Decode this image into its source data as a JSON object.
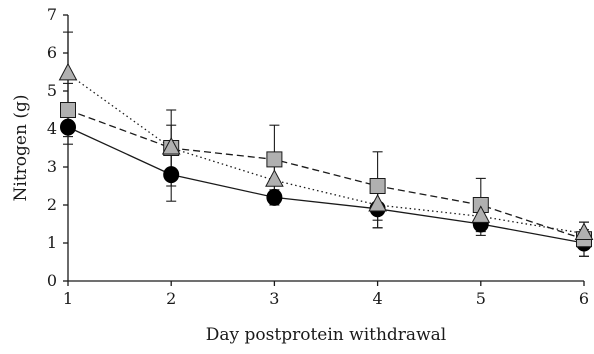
{
  "chart_data": {
    "type": "line",
    "title": "",
    "xlabel": "Day postprotein withdrawal",
    "ylabel": "Nitrogen (g)",
    "x": [
      1,
      2,
      3,
      4,
      5,
      6
    ],
    "xlim": [
      1,
      6
    ],
    "ylim": [
      0,
      7
    ],
    "xticks": [
      "1",
      "2",
      "3",
      "4",
      "5",
      "6"
    ],
    "yticks": [
      "0",
      "1",
      "2",
      "3",
      "4",
      "5",
      "6",
      "7"
    ],
    "grid": false,
    "legend": "none",
    "series": [
      {
        "marker": "circle",
        "line": "solid",
        "fill": "#000000",
        "values": [
          4.05,
          2.8,
          2.2,
          1.9,
          1.5,
          1.0
        ],
        "errors": [
          0.45,
          0.7,
          0.2,
          0.5,
          0.3,
          0.35
        ]
      },
      {
        "marker": "square",
        "line": "dashed",
        "fill": "#b0b0b0",
        "values": [
          4.5,
          3.5,
          3.2,
          2.5,
          2.0,
          1.1
        ],
        "errors": [
          0.7,
          1.0,
          0.9,
          0.9,
          0.7,
          0.45
        ]
      },
      {
        "marker": "triangle",
        "line": "dotted",
        "fill": "#b0b0b0",
        "values": [
          5.45,
          3.5,
          2.65,
          2.0,
          1.7,
          1.25
        ],
        "errors": [
          1.1,
          0.6,
          0.4,
          0.6,
          0.3,
          0.3
        ]
      }
    ]
  }
}
